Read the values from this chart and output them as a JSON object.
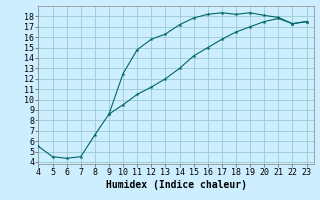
{
  "xlabel": "Humidex (Indice chaleur)",
  "background_color": "#cceeff",
  "line_color": "#006666",
  "grid_color": "#99cccc",
  "xlim": [
    4,
    23.5
  ],
  "ylim": [
    3.8,
    19.0
  ],
  "xticks": [
    4,
    5,
    6,
    7,
    8,
    9,
    10,
    11,
    12,
    13,
    14,
    15,
    16,
    17,
    18,
    19,
    20,
    21,
    22,
    23
  ],
  "yticks": [
    4,
    5,
    6,
    7,
    8,
    9,
    10,
    11,
    12,
    13,
    14,
    15,
    16,
    17,
    18
  ],
  "upper_x": [
    4,
    5,
    6,
    7,
    8,
    9,
    10,
    11,
    12,
    13,
    14,
    15,
    16,
    17,
    18,
    19,
    20,
    21,
    22,
    23
  ],
  "upper_y": [
    5.5,
    4.5,
    4.35,
    4.5,
    6.6,
    8.6,
    12.5,
    14.8,
    15.8,
    16.3,
    17.2,
    17.85,
    18.2,
    18.35,
    18.2,
    18.35,
    18.1,
    17.9,
    17.3,
    17.5
  ],
  "lower_x": [
    9,
    10,
    11,
    12,
    13,
    14,
    15,
    16,
    17,
    18,
    19,
    20,
    21,
    22,
    23
  ],
  "lower_y": [
    8.6,
    9.5,
    10.5,
    11.2,
    12.0,
    13.0,
    14.2,
    15.0,
    15.8,
    16.5,
    17.0,
    17.5,
    17.8,
    17.3,
    17.5
  ],
  "xlabel_fontsize": 7,
  "tick_fontsize": 6
}
